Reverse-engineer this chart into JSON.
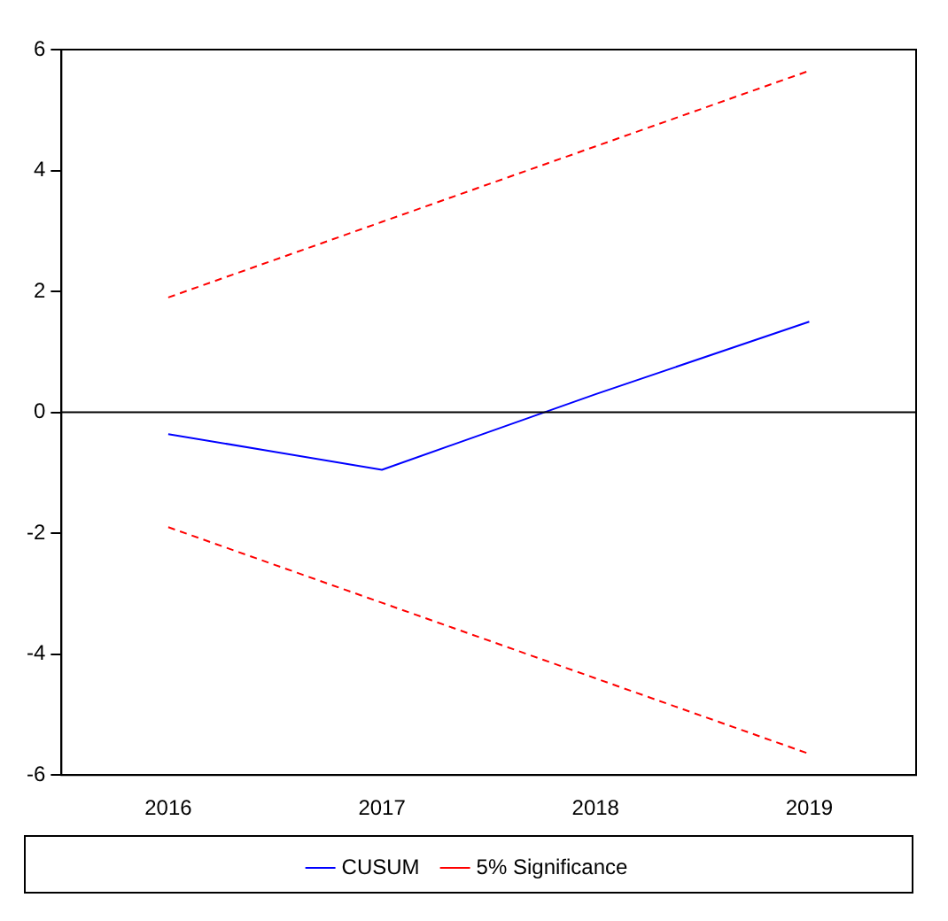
{
  "chart_data": {
    "type": "line",
    "categories": [
      "2016",
      "2017",
      "2018",
      "2019"
    ],
    "series": [
      {
        "name": "CUSUM",
        "color": "#0000ff",
        "values": [
          -0.36,
          -0.95,
          0.3,
          1.5
        ],
        "line_style": "solid"
      },
      {
        "name": "5% Significance",
        "color": "#ff0000",
        "values": [
          1.9,
          3.15,
          4.4,
          5.65
        ],
        "line_style": "dashed"
      },
      {
        "color": "#ff0000",
        "values": [
          -1.9,
          -3.15,
          -4.4,
          -5.65
        ],
        "line_style": "dashed"
      }
    ],
    "ylim": [
      -6,
      6
    ],
    "yticks": [
      -6,
      -4,
      -2,
      0,
      2,
      4,
      6
    ],
    "grid": false,
    "legend": "bottom",
    "marker": "none",
    "ref_lines": [
      {
        "axis": "y",
        "value": 0,
        "color": "#000000"
      }
    ]
  }
}
